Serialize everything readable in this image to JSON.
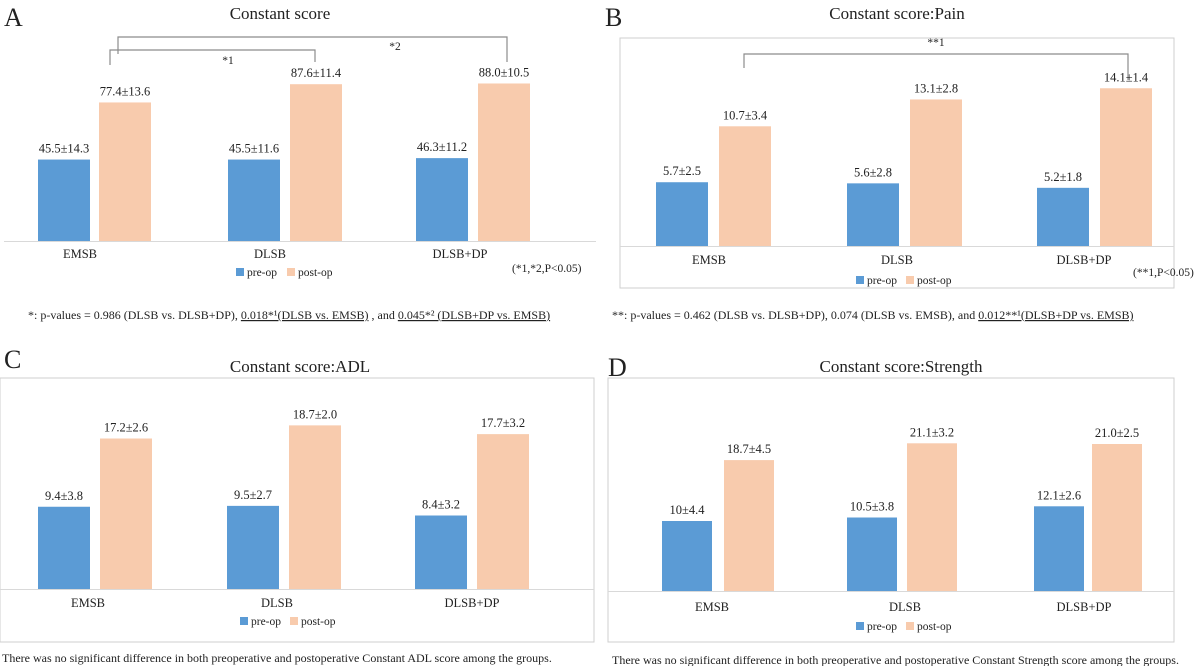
{
  "colors": {
    "pre": "#5b9bd5",
    "post": "#f8cbad"
  },
  "chart_data": [
    {
      "type": "bar",
      "panel": "A",
      "title": "Constant score",
      "categories": [
        "EMSB",
        "DLSB",
        "DLSB+DP"
      ],
      "ylim": [
        0,
        100
      ],
      "series": [
        {
          "name": "pre-op",
          "values": [
            45.5,
            45.5,
            46.3
          ],
          "labels": [
            "45.5±14.3",
            "45.5±11.6",
            "46.3±11.2"
          ]
        },
        {
          "name": "post-op",
          "values": [
            77.4,
            87.6,
            88.0
          ],
          "labels": [
            "77.4±13.6",
            "87.6±11.4",
            "88.0±10.5"
          ]
        }
      ],
      "significance": [
        {
          "label": "*1",
          "from": "EMSB",
          "to": "DLSB"
        },
        {
          "label": "*2",
          "from": "EMSB",
          "to": "DLSB+DP"
        }
      ],
      "note": "(*1,*2,P<0.05)",
      "footnote": {
        "plain1": "*:  p-values = 0.986 (DLSB vs. DLSB+DP), ",
        "u1": "0.018*¹(DLSB vs. EMSB)",
        "plain2": " , and ",
        "u2": "0.045*² (DLSB+DP vs. EMSB)"
      }
    },
    {
      "type": "bar",
      "panel": "B",
      "title": "Constant score:Pain",
      "categories": [
        "EMSB",
        "DLSB",
        "DLSB+DP"
      ],
      "ylim": [
        0,
        16
      ],
      "series": [
        {
          "name": "pre-op",
          "values": [
            5.7,
            5.6,
            5.2
          ],
          "labels": [
            "5.7±2.5",
            "5.6±2.8",
            "5.2±1.8"
          ]
        },
        {
          "name": "post-op",
          "values": [
            10.7,
            13.1,
            14.1
          ],
          "labels": [
            "10.7±3.4",
            "13.1±2.8",
            "14.1±1.4"
          ]
        }
      ],
      "significance": [
        {
          "label": "**1",
          "from": "EMSB",
          "to": "DLSB+DP"
        }
      ],
      "note": "(**1,P<0.05)",
      "footnote": {
        "plain1": "**:  p-values = 0.462 (DLSB vs. DLSB+DP), 0.074 (DLSB vs. EMSB), and ",
        "u1": "0.012**¹(DLSB+DP vs. EMSB)",
        "plain2": "",
        "u2": ""
      }
    },
    {
      "type": "bar",
      "panel": "C",
      "title": "Constant score:ADL",
      "categories": [
        "EMSB",
        "DLSB",
        "DLSB+DP"
      ],
      "ylim": [
        0,
        20
      ],
      "series": [
        {
          "name": "pre-op",
          "values": [
            9.4,
            9.5,
            8.4
          ],
          "labels": [
            "9.4±3.8",
            "9.5±2.7",
            "8.4±3.2"
          ]
        },
        {
          "name": "post-op",
          "values": [
            17.2,
            18.7,
            17.7
          ],
          "labels": [
            "17.2±2.6",
            "18.7±2.0",
            "17.7±3.2"
          ]
        }
      ],
      "significance": [],
      "note": "",
      "footnote": {
        "plain1": "There was no significant difference in both preoperative and postoperative Constant ADL score among the groups.",
        "u1": "",
        "plain2": "",
        "u2": ""
      }
    },
    {
      "type": "bar",
      "panel": "D",
      "title": "Constant score:Strength",
      "categories": [
        "EMSB",
        "DLSB",
        "DLSB+DP"
      ],
      "ylim": [
        0,
        25
      ],
      "series": [
        {
          "name": "pre-op",
          "values": [
            10.0,
            10.5,
            12.1
          ],
          "labels": [
            "10±4.4",
            "10.5±3.8",
            "12.1±2.6"
          ]
        },
        {
          "name": "post-op",
          "values": [
            18.7,
            21.1,
            21.0
          ],
          "labels": [
            "18.7±4.5",
            "21.1±3.2",
            "21.0±2.5"
          ]
        }
      ],
      "significance": [],
      "note": "",
      "footnote": {
        "plain1": "There was no significant difference in both preoperative and postoperative Constant Strength score among the groups.",
        "u1": "",
        "plain2": "",
        "u2": ""
      }
    }
  ]
}
